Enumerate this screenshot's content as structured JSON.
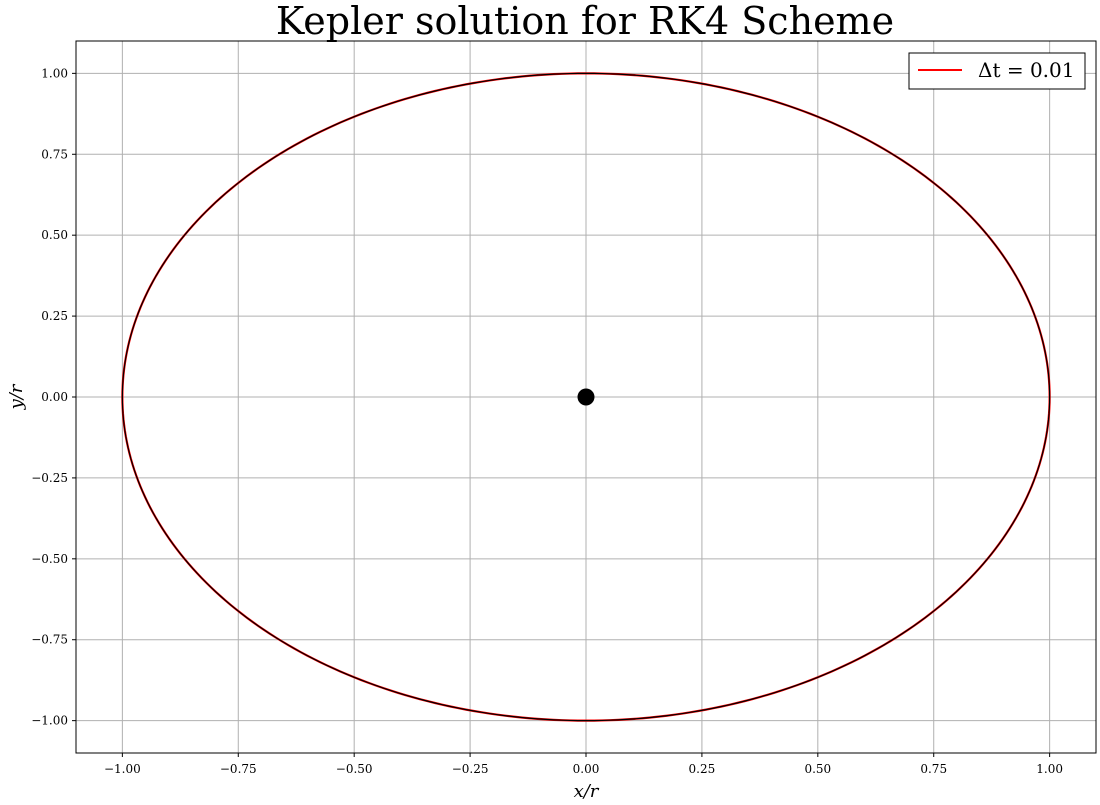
{
  "chart_data": {
    "type": "line",
    "title": "Kepler solution for RK4 Scheme",
    "xlabel": "x/r",
    "ylabel": "y/r",
    "xlim": [
      -1.1,
      1.1
    ],
    "ylim": [
      -1.1,
      1.1
    ],
    "xticks": [
      -1.0,
      -0.75,
      -0.5,
      -0.25,
      0.0,
      0.25,
      0.5,
      0.75,
      1.0
    ],
    "yticks": [
      -1.0,
      -0.75,
      -0.5,
      -0.25,
      0.0,
      0.25,
      0.5,
      0.75,
      1.0
    ],
    "xtick_labels": [
      "−1.00",
      "−0.75",
      "−0.50",
      "−0.25",
      "0.00",
      "0.25",
      "0.50",
      "0.75",
      "1.00"
    ],
    "ytick_labels": [
      "−1.00",
      "−0.75",
      "−0.50",
      "−0.25",
      "0.00",
      "0.25",
      "0.50",
      "0.75",
      "1.00"
    ],
    "grid": true,
    "legend_position": "top-right",
    "series": [
      {
        "name": "Δt = 0.01",
        "color": "#ff0000",
        "shape": "circle",
        "center": [
          0.0,
          0.0
        ],
        "radius": 1.0
      },
      {
        "color": "#000000",
        "shape": "circle",
        "center": [
          0.0,
          0.0
        ],
        "radius": 1.0
      }
    ],
    "central_body": {
      "x": 0.0,
      "y": 0.0,
      "color": "#000000"
    }
  }
}
